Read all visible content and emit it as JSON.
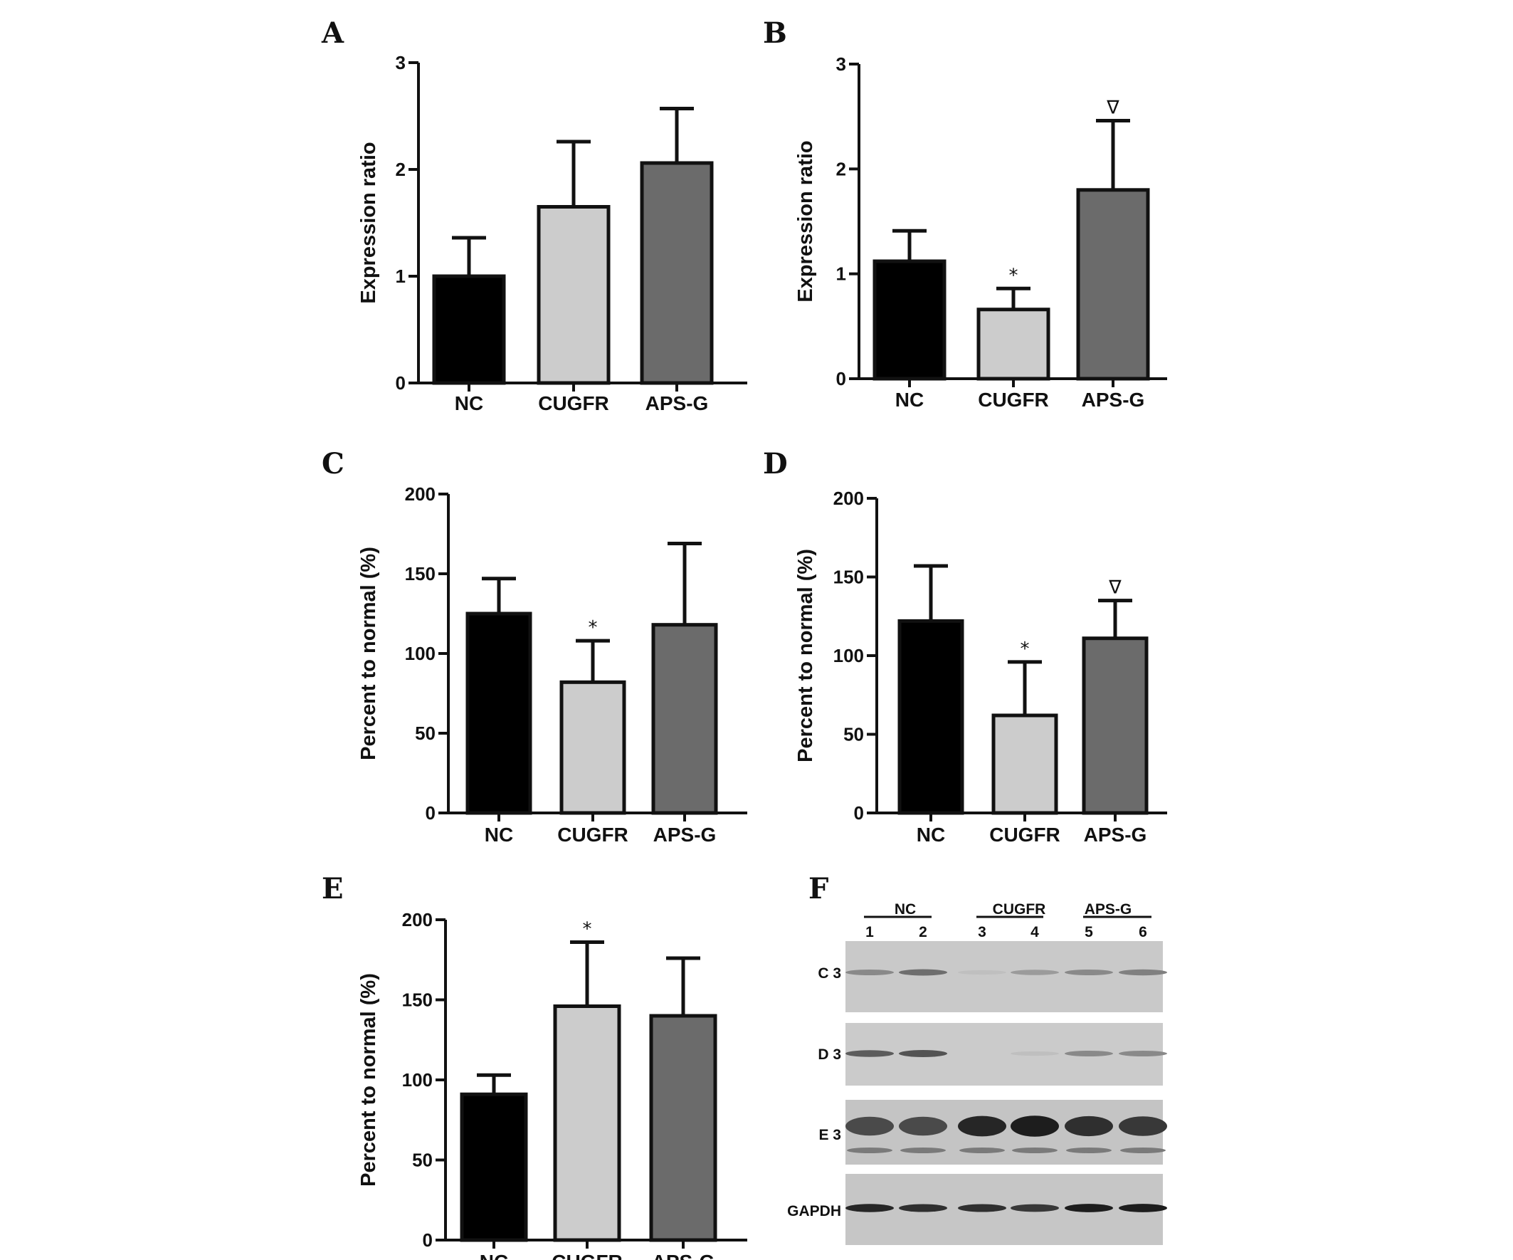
{
  "colors": {
    "NC": "#000000",
    "CUGFR": "#cccccc",
    "APS-G": "#6b6b6b",
    "axis": "#111111"
  },
  "chart_data": [
    {
      "panel": "A",
      "type": "bar",
      "categories": [
        "NC",
        "CUGFR",
        "APS-G"
      ],
      "values": [
        1.0,
        1.65,
        2.06
      ],
      "errors": [
        0.36,
        0.61,
        0.51
      ],
      "markers": [
        "",
        "",
        ""
      ],
      "ylabel": "Expression ratio",
      "ylim": [
        0,
        3
      ],
      "yticks": [
        "0",
        "1",
        "2",
        "3"
      ],
      "grid": false
    },
    {
      "panel": "B",
      "type": "bar",
      "categories": [
        "NC",
        "CUGFR",
        "APS-G"
      ],
      "values": [
        1.12,
        0.66,
        1.8
      ],
      "errors": [
        0.29,
        0.2,
        0.66
      ],
      "markers": [
        "",
        "*",
        "∇"
      ],
      "ylabel": "Expression ratio",
      "ylim": [
        0,
        3
      ],
      "yticks": [
        "0",
        "1",
        "2",
        "3"
      ],
      "grid": false
    },
    {
      "panel": "C",
      "type": "bar",
      "categories": [
        "NC",
        "CUGFR",
        "APS-G"
      ],
      "values": [
        125,
        82,
        118
      ],
      "errors": [
        22,
        26,
        51
      ],
      "markers": [
        "",
        "*",
        ""
      ],
      "ylabel": "Percent to normal (%)",
      "ylim": [
        0,
        200
      ],
      "yticks": [
        "0",
        "50",
        "100",
        "150",
        "200"
      ],
      "grid": false
    },
    {
      "panel": "D",
      "type": "bar",
      "categories": [
        "NC",
        "CUGFR",
        "APS-G"
      ],
      "values": [
        122,
        62,
        111
      ],
      "errors": [
        35,
        34,
        24
      ],
      "markers": [
        "",
        "*",
        "∇"
      ],
      "ylabel": "Percent to normal (%)",
      "ylim": [
        0,
        200
      ],
      "yticks": [
        "0",
        "50",
        "100",
        "150",
        "200"
      ],
      "grid": false
    },
    {
      "panel": "E",
      "type": "bar",
      "categories": [
        "NC",
        "CUGFR",
        "APS-G"
      ],
      "values": [
        91,
        146,
        140
      ],
      "errors": [
        12,
        40,
        36
      ],
      "markers": [
        "",
        "*",
        ""
      ],
      "ylabel": "Percent to normal (%)",
      "ylim": [
        0,
        200
      ],
      "yticks": [
        "0",
        "50",
        "100",
        "150",
        "200"
      ],
      "grid": false
    }
  ],
  "blot": {
    "panel": "F",
    "groups": [
      "NC",
      "CUGFR",
      "APS-G"
    ],
    "lanes": [
      "1",
      "2",
      "3",
      "4",
      "5",
      "6"
    ],
    "rows": [
      "C 3",
      "D 3",
      "E 3",
      "GAPDH"
    ],
    "band_intensity": [
      [
        0.35,
        0.5,
        0.05,
        0.25,
        0.35,
        0.4
      ],
      [
        0.6,
        0.65,
        0.0,
        0.05,
        0.35,
        0.35
      ],
      [
        0.7,
        0.7,
        0.9,
        0.95,
        0.85,
        0.8
      ],
      [
        0.9,
        0.85,
        0.85,
        0.8,
        0.95,
        0.95
      ]
    ]
  }
}
